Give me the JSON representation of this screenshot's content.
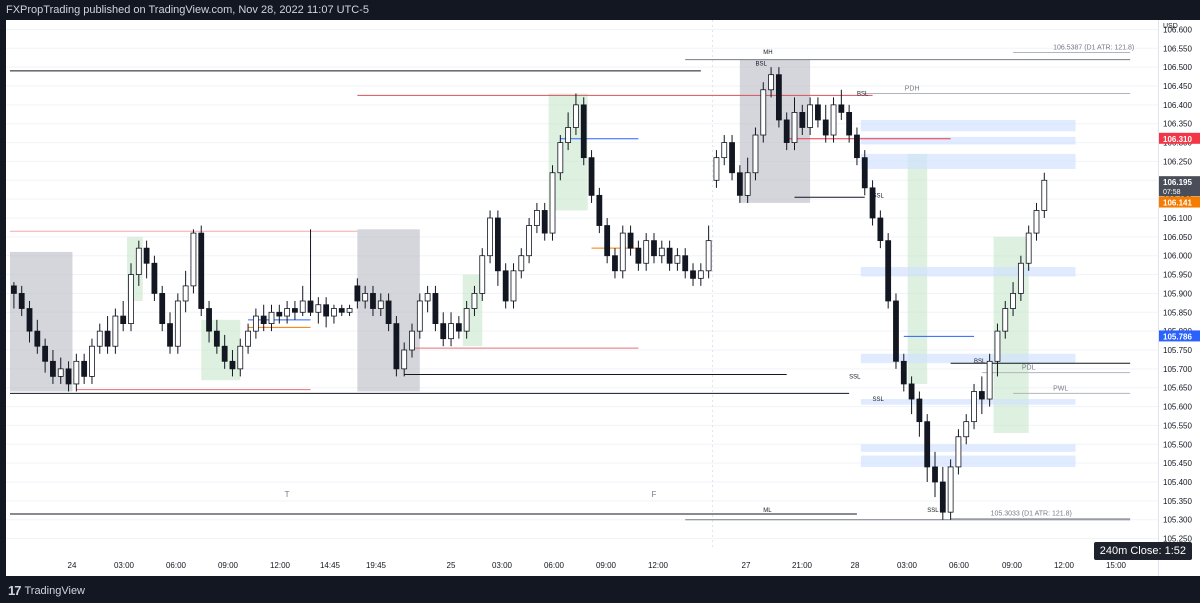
{
  "header": {
    "title": "FXPropTrading published on TradingView.com, Nov 28, 2022 11:07 UTC-5"
  },
  "footer": {
    "brand": "TradingView",
    "logo": "tradingview-logo"
  },
  "countdown": {
    "label": "240m Close: 1:52"
  },
  "colors": {
    "bg": "#ffffff",
    "up": "#ffffff",
    "down": "#131722",
    "wick": "#131722",
    "axis_text": "#131722",
    "dark": "#131722"
  },
  "chart_data": {
    "type": "candlestick",
    "ylabel": "USD",
    "ylim": [
      106.625,
      105.225
    ],
    "y_ticks": [
      106.6,
      106.55,
      106.5,
      106.45,
      106.4,
      106.35,
      106.3,
      106.25,
      106.2,
      106.15,
      106.1,
      106.05,
      106.0,
      105.95,
      105.9,
      105.85,
      105.8,
      105.75,
      105.7,
      105.65,
      105.6,
      105.55,
      105.5,
      105.45,
      105.4,
      105.35,
      105.3,
      105.25
    ],
    "x_ticks": [
      "24",
      "03:00",
      "06:00",
      "09:00",
      "12:00",
      "14:45",
      "19:45",
      "25",
      "03:00",
      "06:00",
      "09:00",
      "12:00",
      "27",
      "21:00",
      "28",
      "03:00",
      "06:00",
      "09:00",
      "12:00",
      "15:00"
    ],
    "session_labels": [
      {
        "text": "T",
        "idx": 35
      },
      {
        "text": "F",
        "idx": 82
      }
    ],
    "price_labels": [
      {
        "value": 106.31,
        "text": "106.310",
        "color": "#f23645"
      },
      {
        "value": 106.195,
        "text": "106.195",
        "sub": "07:58",
        "color": "#4a4e59"
      },
      {
        "value": 106.141,
        "text": "106.141",
        "color": "#f57c00"
      },
      {
        "value": 105.786,
        "text": "105.786",
        "color": "#2962ff"
      }
    ],
    "level_lines": [
      {
        "value": 106.5387,
        "text": "106.5387 (D1 ATR: 121.8)",
        "from": 128,
        "to": 143
      },
      {
        "value": 105.3033,
        "text": "105.3033 (D1 ATR: 121.8)",
        "from": 120,
        "to": 143
      },
      {
        "value": 106.43,
        "text": "PDH",
        "from": 109,
        "to": 143
      },
      {
        "value": 105.69,
        "text": "PDL",
        "from": 124,
        "to": 143
      },
      {
        "value": 105.635,
        "text": "PWL",
        "from": 128,
        "to": 143
      }
    ],
    "annotations": [
      {
        "text": "BSL",
        "idx": 95,
        "value": 106.505
      },
      {
        "text": "BSL",
        "idx": 108,
        "value": 106.425
      },
      {
        "text": "SSL",
        "idx": 110,
        "value": 106.155
      },
      {
        "text": "SSL",
        "idx": 107,
        "value": 105.675
      },
      {
        "text": "SSL",
        "idx": 110,
        "value": 105.615
      },
      {
        "text": "BSL",
        "idx": 123,
        "value": 105.715
      },
      {
        "text": "SSL",
        "idx": 117,
        "value": 105.32
      },
      {
        "text": "MH",
        "idx": 96,
        "value": 106.535
      },
      {
        "text": "ML",
        "idx": 96,
        "value": 105.32
      }
    ],
    "candles": [
      [
        105.92,
        105.9,
        105.93,
        105.86
      ],
      [
        105.9,
        105.86,
        105.92,
        105.84
      ],
      [
        105.86,
        105.8,
        105.88,
        105.77
      ],
      [
        105.8,
        105.76,
        105.83,
        105.74
      ],
      [
        105.76,
        105.72,
        105.78,
        105.69
      ],
      [
        105.72,
        105.68,
        105.75,
        105.66
      ],
      [
        105.68,
        105.7,
        105.73,
        105.66
      ],
      [
        105.7,
        105.66,
        105.72,
        105.64
      ],
      [
        105.66,
        105.72,
        105.74,
        105.64
      ],
      [
        105.72,
        105.68,
        105.74,
        105.66
      ],
      [
        105.68,
        105.76,
        105.78,
        105.66
      ],
      [
        105.76,
        105.8,
        105.82,
        105.74
      ],
      [
        105.8,
        105.76,
        105.84,
        105.74
      ],
      [
        105.76,
        105.84,
        105.86,
        105.74
      ],
      [
        105.84,
        105.82,
        105.88,
        105.8
      ],
      [
        105.82,
        105.95,
        105.98,
        105.8
      ],
      [
        105.95,
        106.02,
        106.04,
        105.92
      ],
      [
        106.02,
        105.98,
        106.04,
        105.94
      ],
      [
        105.98,
        105.9,
        106.0,
        105.88
      ],
      [
        105.9,
        105.82,
        105.92,
        105.8
      ],
      [
        105.82,
        105.76,
        105.85,
        105.74
      ],
      [
        105.76,
        105.88,
        105.9,
        105.74
      ],
      [
        105.88,
        105.92,
        105.96,
        105.85
      ],
      [
        105.92,
        106.06,
        106.07,
        105.9
      ],
      [
        106.06,
        105.86,
        106.08,
        105.84
      ],
      [
        105.86,
        105.8,
        105.88,
        105.77
      ],
      [
        105.8,
        105.76,
        105.83,
        105.74
      ],
      [
        105.76,
        105.72,
        105.79,
        105.7
      ],
      [
        105.72,
        105.7,
        105.75,
        105.68
      ],
      [
        105.7,
        105.76,
        105.78,
        105.68
      ],
      [
        105.76,
        105.8,
        105.82,
        105.74
      ],
      [
        105.8,
        105.84,
        105.86,
        105.78
      ],
      [
        105.84,
        105.82,
        105.87,
        105.8
      ],
      [
        105.82,
        105.85,
        105.87,
        105.8
      ],
      [
        105.85,
        105.84,
        105.87,
        105.82
      ],
      [
        105.84,
        105.86,
        105.88,
        105.82
      ],
      [
        105.86,
        105.85,
        105.88,
        105.83
      ],
      [
        105.85,
        105.88,
        105.92,
        105.84
      ],
      [
        105.88,
        105.85,
        106.07,
        105.84
      ],
      [
        105.85,
        105.87,
        105.89,
        105.82
      ],
      [
        105.87,
        105.84,
        105.89,
        105.81
      ],
      [
        105.84,
        105.86,
        105.87,
        105.82
      ],
      [
        105.86,
        105.85,
        105.87,
        105.84
      ],
      [
        105.85,
        105.86,
        105.87,
        105.84
      ],
      [
        105.92,
        105.88,
        105.94,
        105.86
      ],
      [
        105.88,
        105.9,
        105.92,
        105.86
      ],
      [
        105.9,
        105.86,
        105.92,
        105.84
      ],
      [
        105.86,
        105.88,
        105.9,
        105.84
      ],
      [
        105.88,
        105.82,
        105.9,
        105.8
      ],
      [
        105.82,
        105.7,
        105.84,
        105.68
      ],
      [
        105.7,
        105.75,
        105.77,
        105.68
      ],
      [
        105.75,
        105.8,
        105.82,
        105.73
      ],
      [
        105.8,
        105.88,
        105.9,
        105.78
      ],
      [
        105.88,
        105.9,
        105.92,
        105.85
      ],
      [
        105.9,
        105.82,
        105.92,
        105.8
      ],
      [
        105.82,
        105.78,
        105.85,
        105.76
      ],
      [
        105.78,
        105.82,
        105.85,
        105.76
      ],
      [
        105.82,
        105.8,
        105.84,
        105.78
      ],
      [
        105.8,
        105.86,
        105.88,
        105.78
      ],
      [
        105.86,
        105.9,
        105.92,
        105.84
      ],
      [
        105.9,
        106.0,
        106.02,
        105.88
      ],
      [
        106.0,
        106.1,
        106.12,
        105.98
      ],
      [
        106.1,
        105.96,
        106.12,
        105.92
      ],
      [
        105.96,
        105.88,
        105.98,
        105.86
      ],
      [
        105.88,
        105.96,
        105.98,
        105.86
      ],
      [
        105.96,
        106.0,
        106.02,
        105.94
      ],
      [
        106.0,
        106.08,
        106.1,
        105.98
      ],
      [
        106.08,
        106.12,
        106.14,
        106.06
      ],
      [
        106.12,
        106.06,
        106.14,
        106.04
      ],
      [
        106.06,
        106.22,
        106.24,
        106.04
      ],
      [
        106.22,
        106.3,
        106.32,
        106.2
      ],
      [
        106.3,
        106.34,
        106.38,
        106.28
      ],
      [
        106.34,
        106.4,
        106.43,
        106.32
      ],
      [
        106.4,
        106.26,
        106.42,
        106.24
      ],
      [
        106.26,
        106.16,
        106.28,
        106.14
      ],
      [
        106.16,
        106.08,
        106.18,
        106.06
      ],
      [
        106.08,
        106.0,
        106.1,
        105.98
      ],
      [
        106.0,
        105.96,
        106.02,
        105.94
      ],
      [
        105.96,
        106.06,
        106.08,
        105.94
      ],
      [
        106.06,
        106.02,
        106.08,
        106.0
      ],
      [
        106.02,
        105.98,
        106.04,
        105.96
      ],
      [
        105.98,
        106.04,
        106.06,
        105.96
      ],
      [
        106.04,
        106.0,
        106.06,
        105.98
      ],
      [
        106.0,
        106.02,
        106.04,
        105.98
      ],
      [
        106.02,
        105.98,
        106.04,
        105.96
      ],
      [
        105.98,
        106.0,
        106.02,
        105.96
      ],
      [
        106.0,
        105.96,
        106.02,
        105.94
      ],
      [
        105.96,
        105.94,
        105.98,
        105.92
      ],
      [
        105.94,
        105.96,
        105.98,
        105.92
      ],
      [
        105.96,
        106.04,
        106.08,
        105.94
      ],
      [
        106.2,
        106.26,
        106.28,
        106.18
      ],
      [
        106.26,
        106.3,
        106.32,
        106.24
      ],
      [
        106.3,
        106.22,
        106.32,
        106.2
      ],
      [
        106.22,
        106.16,
        106.24,
        106.14
      ],
      [
        106.16,
        106.22,
        106.26,
        106.14
      ],
      [
        106.22,
        106.32,
        106.34,
        106.2
      ],
      [
        106.32,
        106.44,
        106.46,
        106.3
      ],
      [
        106.44,
        106.48,
        106.5,
        106.42
      ],
      [
        106.48,
        106.36,
        106.5,
        106.34
      ],
      [
        106.36,
        106.3,
        106.38,
        106.28
      ],
      [
        106.3,
        106.38,
        106.42,
        106.28
      ],
      [
        106.38,
        106.34,
        106.4,
        106.32
      ],
      [
        106.34,
        106.4,
        106.42,
        106.32
      ],
      [
        106.4,
        106.36,
        106.42,
        106.34
      ],
      [
        106.36,
        106.32,
        106.4,
        106.3
      ],
      [
        106.32,
        106.4,
        106.42,
        106.3
      ],
      [
        106.4,
        106.38,
        106.44,
        106.36
      ],
      [
        106.38,
        106.32,
        106.4,
        106.3
      ],
      [
        106.32,
        106.26,
        106.34,
        106.24
      ],
      [
        106.26,
        106.18,
        106.28,
        106.16
      ],
      [
        106.18,
        106.1,
        106.2,
        106.08
      ],
      [
        106.1,
        106.04,
        106.12,
        106.02
      ],
      [
        106.04,
        105.88,
        106.06,
        105.86
      ],
      [
        105.88,
        105.72,
        105.9,
        105.7
      ],
      [
        105.72,
        105.66,
        105.74,
        105.64
      ],
      [
        105.66,
        105.62,
        105.68,
        105.58
      ],
      [
        105.62,
        105.56,
        105.64,
        105.52
      ],
      [
        105.56,
        105.44,
        105.58,
        105.4
      ],
      [
        105.44,
        105.4,
        105.48,
        105.36
      ],
      [
        105.4,
        105.32,
        105.44,
        105.3
      ],
      [
        105.32,
        105.44,
        105.46,
        105.3
      ],
      [
        105.44,
        105.52,
        105.54,
        105.42
      ],
      [
        105.52,
        105.56,
        105.58,
        105.5
      ],
      [
        105.56,
        105.64,
        105.66,
        105.54
      ],
      [
        105.64,
        105.62,
        105.68,
        105.58
      ],
      [
        105.62,
        105.72,
        105.74,
        105.6
      ],
      [
        105.72,
        105.8,
        105.82,
        105.68
      ],
      [
        105.8,
        105.86,
        105.88,
        105.78
      ],
      [
        105.86,
        105.9,
        105.93,
        105.84
      ],
      [
        105.9,
        105.98,
        106.0,
        105.88
      ],
      [
        105.98,
        106.06,
        106.08,
        105.96
      ],
      [
        106.06,
        106.12,
        106.14,
        106.04
      ],
      [
        106.12,
        106.2,
        106.22,
        106.1
      ]
    ]
  }
}
